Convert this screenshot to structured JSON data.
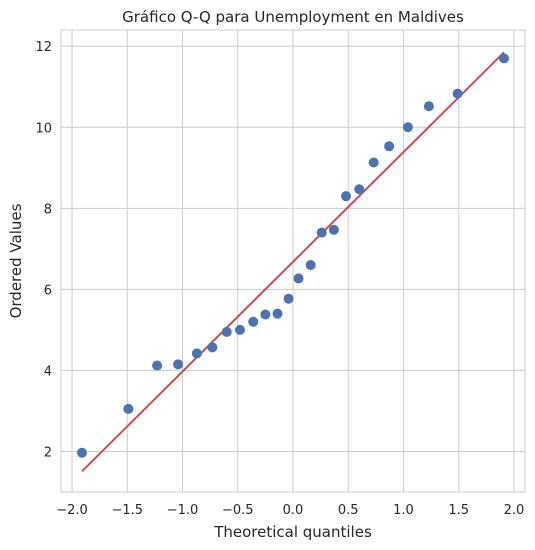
{
  "chart_data": {
    "type": "scatter",
    "title": "Gráfico Q-Q para Unemployment en Maldives",
    "xlabel": "Theoretical quantiles",
    "ylabel": "Ordered Values",
    "xlim": [
      -2.1,
      2.1
    ],
    "ylim": [
      1.0,
      12.4
    ],
    "x_ticks": [
      -2.0,
      -1.5,
      -1.0,
      -0.5,
      0.0,
      0.5,
      1.0,
      1.5,
      2.0
    ],
    "x_tick_labels": [
      "−2.0",
      "−1.5",
      "−1.0",
      "−0.5",
      "0.0",
      "0.5",
      "1.0",
      "1.5",
      "2.0"
    ],
    "y_ticks": [
      2,
      4,
      6,
      8,
      10,
      12
    ],
    "y_tick_labels": [
      "2",
      "4",
      "6",
      "8",
      "10",
      "12"
    ],
    "grid": true,
    "series": [
      {
        "kind": "points",
        "color": "#4c72b0",
        "x": [
          -1.91,
          -1.49,
          -1.23,
          -1.04,
          -0.87,
          -0.73,
          -0.6,
          -0.48,
          -0.36,
          -0.25,
          -0.14,
          -0.04,
          0.05,
          0.16,
          0.26,
          0.37,
          0.48,
          0.6,
          0.73,
          0.87,
          1.04,
          1.23,
          1.49,
          1.91
        ],
        "y": [
          1.97,
          3.05,
          4.12,
          4.15,
          4.42,
          4.57,
          4.95,
          5.0,
          5.2,
          5.38,
          5.4,
          5.77,
          6.27,
          6.6,
          7.4,
          7.47,
          8.3,
          8.47,
          9.13,
          9.53,
          10.0,
          10.52,
          10.83,
          11.7
        ]
      },
      {
        "kind": "fit-line",
        "color": "#c44e52",
        "x": [
          -1.91,
          1.91
        ],
        "y": [
          1.51,
          11.85
        ]
      }
    ]
  }
}
